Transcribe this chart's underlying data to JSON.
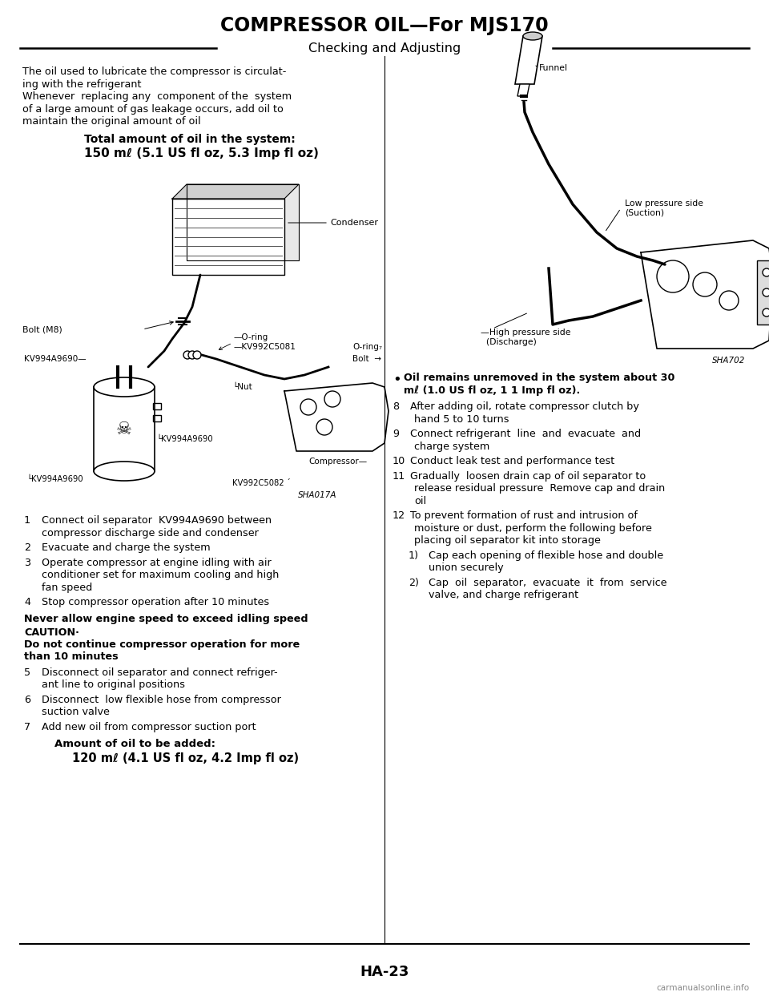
{
  "title": "COMPRESSOR OIL—For MJS170",
  "subtitle": "Checking and Adjusting",
  "page_number": "HA-23",
  "watermark": "carmanualsonline.info",
  "bg_color": "#ffffff",
  "text_color": "#000000",
  "intro_lines": [
    "The oil used to lubricate the compressor is circulat-",
    "ing with the refrigerant",
    "Whenever  replacing any  component of the  system",
    "of a large amount of gas leakage occurs, add oil to",
    "maintain the original amount of oil"
  ],
  "total_oil_label": "Total amount of oil in the system:",
  "total_oil_value": "150 mℓ (5.1 US fl oz, 5.3 Imp fl oz)",
  "sha017a": "SHA017A",
  "sha702": "SHA702",
  "bullet_bold": "Oil remains unremoved in the system about 30",
  "bullet_bold2": "mℓ (1.0 US fl oz, 1 1 Imp fl oz).",
  "left_items": [
    [
      "1",
      "Connect oil separator  KV994A9690 between",
      "compressor discharge side and condenser"
    ],
    [
      "2",
      "Evacuate and charge the system"
    ],
    [
      "3",
      "Operate compressor at engine idling with air",
      "conditioner set for maximum cooling and high",
      "fan speed"
    ],
    [
      "4",
      "Stop compressor operation after 10 minutes"
    ]
  ],
  "never_allow": "Never allow engine speed to exceed idling speed",
  "caution_head": "CAUTION·",
  "caution_body": [
    "Do not continue compressor operation for more",
    "than 10 minutes"
  ],
  "left_items2": [
    [
      "5",
      "Disconnect oil separator and connect refriger-",
      "ant line to original positions"
    ],
    [
      "6",
      "Disconnect  low flexible hose from compressor",
      "suction valve"
    ],
    [
      "7",
      "Add new oil from compressor suction port"
    ]
  ],
  "amount_label": "Amount of oil to be added:",
  "amount_value": "120 mℓ (4.1 US fl oz, 4.2 Imp fl oz)",
  "right_items": [
    [
      "8",
      "After adding oil, rotate compressor clutch by",
      "hand 5 to 10 turns"
    ],
    [
      "9",
      "Connect refrigerant  line  and  evacuate  and",
      "charge system"
    ],
    [
      "10",
      "Conduct leak test and performance test"
    ],
    [
      "11",
      "Gradually  loosen drain cap of oil separator to",
      "release residual pressure  Remove cap and drain",
      "oil"
    ],
    [
      "12",
      "To prevent formation of rust and intrusion of",
      "moisture or dust, perform the following before",
      "placing oil separator kit into storage"
    ]
  ],
  "sub_items": [
    [
      "1)",
      "Cap each opening of flexible hose and double",
      "union securely"
    ],
    [
      "2)",
      "Cap  oil  separator,  evacuate  it  from  service",
      "valve, and charge refrigerant"
    ]
  ],
  "funnel_label": "Funnel",
  "low_pressure_label": "Low pressure side\n(Suction)",
  "high_pressure_label": "—High pressure side\n  (Discharge)"
}
